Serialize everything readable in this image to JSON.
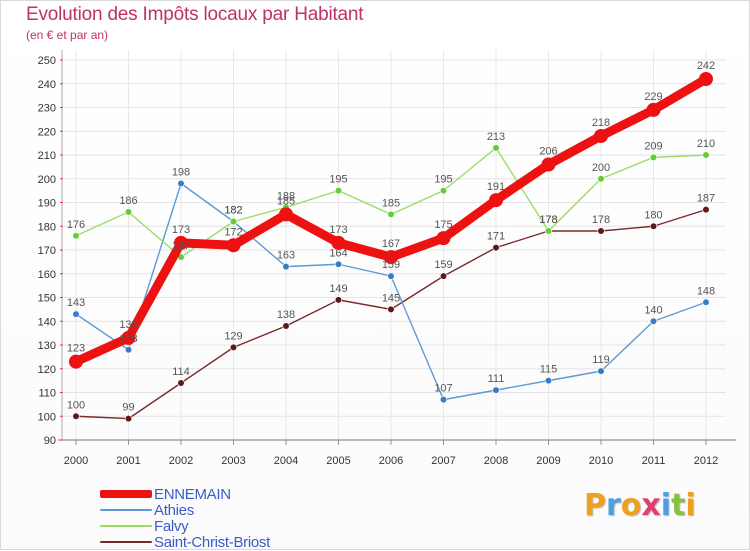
{
  "chart_data": {
    "type": "line",
    "title": "Evolution des Impôts locaux par Habitant",
    "subtitle": "(en € et par an)",
    "xlabel": "",
    "ylabel": "",
    "ylim": [
      90,
      250
    ],
    "y_ticks": [
      90,
      100,
      110,
      120,
      130,
      140,
      150,
      160,
      170,
      180,
      190,
      200,
      210,
      220,
      230,
      240,
      250
    ],
    "x": [
      "2000",
      "2001",
      "2002",
      "2003",
      "2004",
      "2005",
      "2006",
      "2007",
      "2008",
      "2009",
      "2010",
      "2011",
      "2012"
    ],
    "grid": true,
    "legend_position": "bottom-left",
    "series": [
      {
        "name": "ENNEMAIN",
        "color": "#ee1111",
        "marker_color": "#ee1111",
        "values": [
          123,
          133,
          173,
          172,
          185,
          173,
          167,
          175,
          191,
          206,
          218,
          229,
          242
        ]
      },
      {
        "name": "Athies",
        "color": "#5b9bd5",
        "marker_color": "#3a7bc8",
        "values": [
          143,
          128,
          198,
          182,
          163,
          164,
          159,
          107,
          111,
          115,
          119,
          140,
          148
        ]
      },
      {
        "name": "Falvy",
        "color": "#99dd66",
        "marker_color": "#66cc33",
        "values": [
          176,
          186,
          167,
          182,
          188,
          195,
          185,
          195,
          213,
          178,
          200,
          209,
          210
        ]
      },
      {
        "name": "Saint-Christ-Briost",
        "color": "#7a2a2a",
        "marker_color": "#5a1a1a",
        "values": [
          100,
          99,
          114,
          129,
          138,
          149,
          145,
          159,
          171,
          178,
          178,
          180,
          187
        ]
      }
    ]
  },
  "logo": {
    "text": "Proxiti",
    "letters": [
      {
        "ch": "P",
        "color": "#f0a020"
      },
      {
        "ch": "r",
        "color": "#4aa0e0"
      },
      {
        "ch": "o",
        "color": "#f0a020"
      },
      {
        "ch": "x",
        "color": "#e04070"
      },
      {
        "ch": "i",
        "color": "#4aa0e0"
      },
      {
        "ch": "t",
        "color": "#88c040"
      },
      {
        "ch": "i",
        "color": "#f0a020"
      }
    ]
  }
}
